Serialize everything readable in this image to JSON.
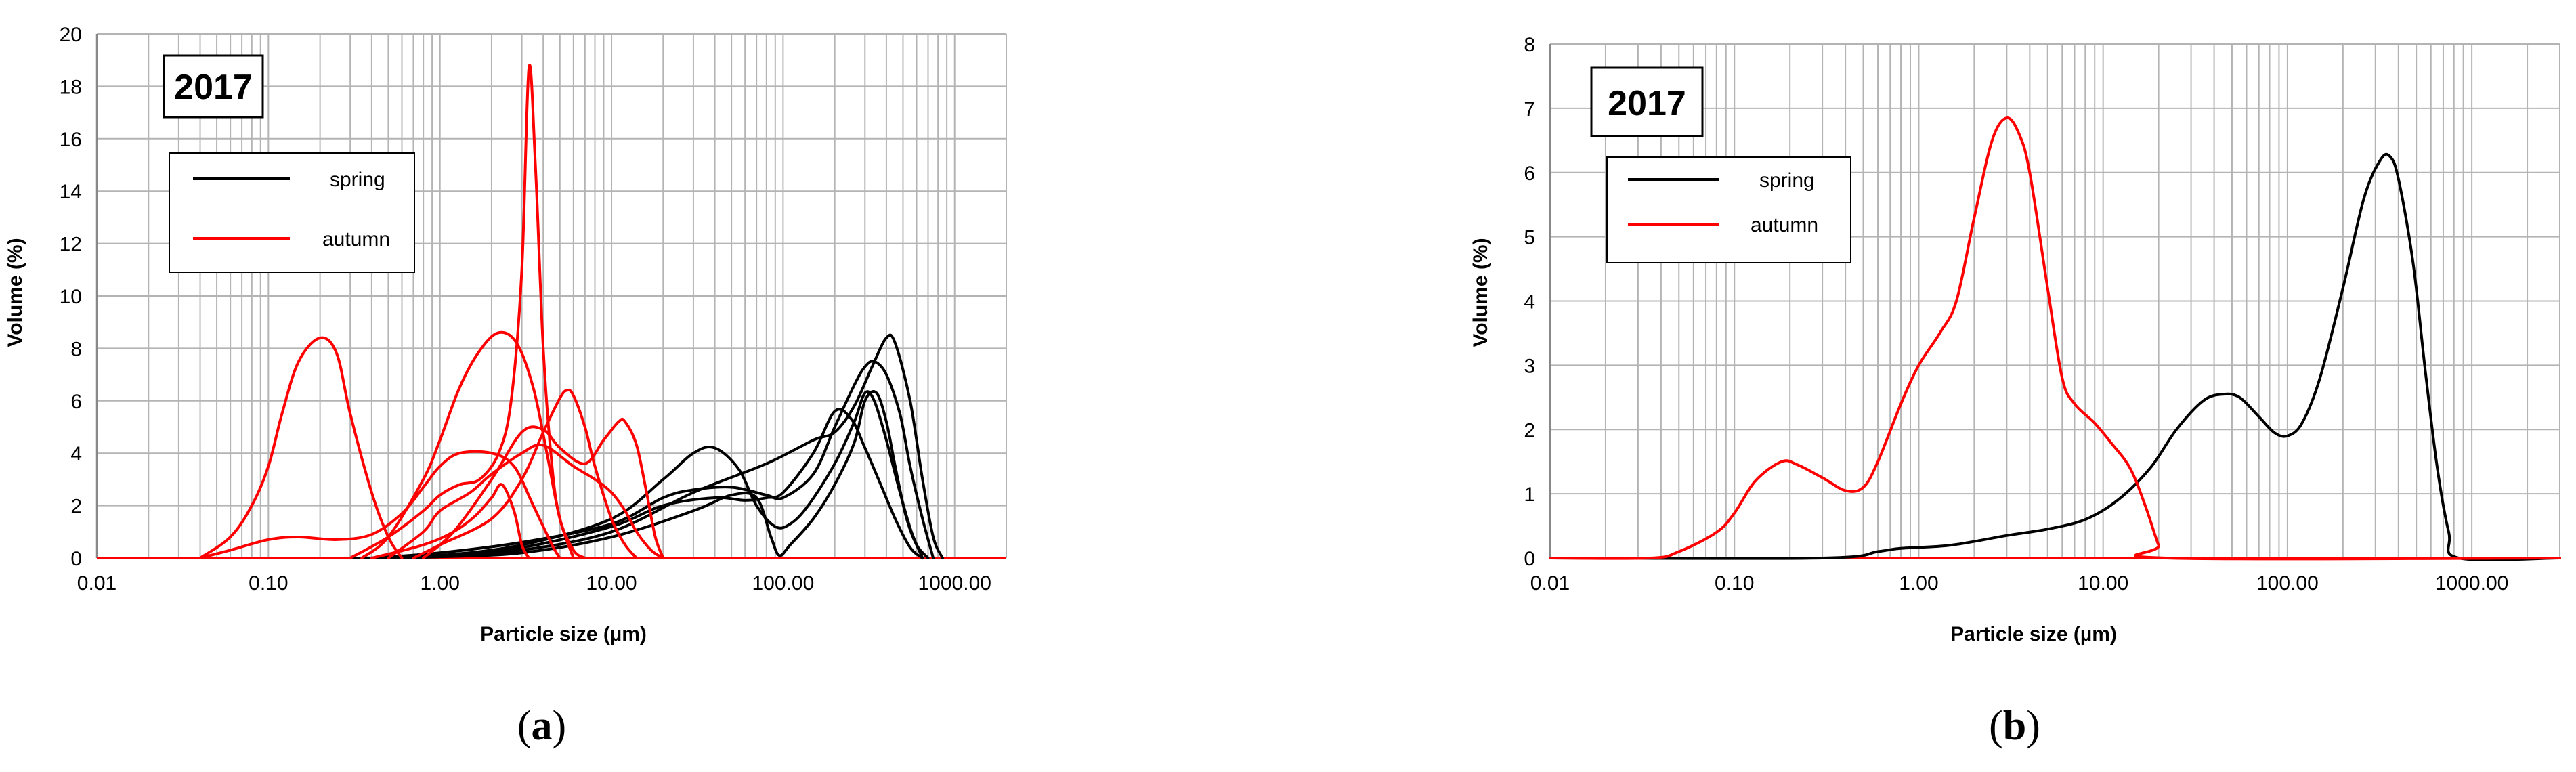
{
  "colors": {
    "spring": "#000000",
    "autumn": "#ff0000",
    "grid": "#b4b4b4"
  },
  "chart_data": [
    {
      "type": "line",
      "panel_label": "(a)",
      "panel_letter": "a",
      "year_label": "2017",
      "xlabel": "Particle size (µm)",
      "ylabel": "Volume (%)",
      "x_scale": "log",
      "xlim": [
        0.01,
        2000
      ],
      "ylim": [
        0,
        20
      ],
      "x_tick_labels": [
        "0.01",
        "0.10",
        "1.00",
        "10.00",
        "100.00",
        "1000.00"
      ],
      "y_ticks": [
        0,
        2,
        4,
        6,
        8,
        10,
        12,
        14,
        16,
        18,
        20
      ],
      "grid": true,
      "legend": {
        "position": "top-left",
        "entries": [
          "spring",
          "autumn"
        ]
      },
      "series": [
        {
          "group": "spring",
          "points": [
            [
              0.3,
              0
            ],
            [
              1,
              0.05
            ],
            [
              3,
              0.3
            ],
            [
              10,
              1.0
            ],
            [
              30,
              2.5
            ],
            [
              80,
              3.6
            ],
            [
              150,
              4.5
            ],
            [
              200,
              4.8
            ],
            [
              260,
              5.8
            ],
            [
              330,
              7.3
            ],
            [
              400,
              8.4
            ],
            [
              450,
              8.2
            ],
            [
              550,
              6.0
            ],
            [
              650,
              3.0
            ],
            [
              750,
              0.8
            ],
            [
              850,
              0
            ]
          ]
        },
        {
          "group": "spring",
          "points": [
            [
              0.4,
              0
            ],
            [
              1,
              0.2
            ],
            [
              3,
              0.6
            ],
            [
              10,
              1.3
            ],
            [
              20,
              2.3
            ],
            [
              30,
              2.6
            ],
            [
              50,
              2.7
            ],
            [
              80,
              2.4
            ],
            [
              100,
              2.3
            ],
            [
              150,
              3.2
            ],
            [
              200,
              5.0
            ],
            [
              260,
              6.6
            ],
            [
              300,
              7.3
            ],
            [
              340,
              7.5
            ],
            [
              400,
              7.0
            ],
            [
              480,
              5.5
            ],
            [
              550,
              3.5
            ],
            [
              650,
              1.5
            ],
            [
              750,
              0
            ]
          ]
        },
        {
          "group": "spring",
          "points": [
            [
              0.4,
              0
            ],
            [
              1,
              0.1
            ],
            [
              3,
              0.5
            ],
            [
              10,
              1.5
            ],
            [
              20,
              3.0
            ],
            [
              30,
              4.0
            ],
            [
              40,
              4.2
            ],
            [
              55,
              3.4
            ],
            [
              70,
              2.0
            ],
            [
              90,
              1.2
            ],
            [
              110,
              1.3
            ],
            [
              140,
              2.0
            ],
            [
              200,
              3.6
            ],
            [
              260,
              5.2
            ],
            [
              300,
              6.3
            ],
            [
              340,
              6.0
            ],
            [
              400,
              4.5
            ],
            [
              480,
              2.5
            ],
            [
              560,
              1.0
            ],
            [
              650,
              0
            ]
          ]
        },
        {
          "group": "spring",
          "points": [
            [
              0.4,
              0
            ],
            [
              1,
              0.1
            ],
            [
              3,
              0.4
            ],
            [
              10,
              1.2
            ],
            [
              20,
              2.0
            ],
            [
              40,
              2.3
            ],
            [
              60,
              2.2
            ],
            [
              80,
              2.3
            ],
            [
              100,
              2.5
            ],
            [
              150,
              4.0
            ],
            [
              200,
              5.6
            ],
            [
              250,
              5.3
            ],
            [
              300,
              4.2
            ],
            [
              360,
              3.0
            ],
            [
              450,
              1.5
            ],
            [
              550,
              0.4
            ],
            [
              650,
              0
            ]
          ]
        },
        {
          "group": "spring",
          "points": [
            [
              0.4,
              0
            ],
            [
              1,
              0.05
            ],
            [
              3,
              0.2
            ],
            [
              10,
              0.8
            ],
            [
              30,
              1.8
            ],
            [
              50,
              2.4
            ],
            [
              70,
              2.3
            ],
            [
              85,
              0.8
            ],
            [
              95,
              0.1
            ],
            [
              110,
              0.5
            ],
            [
              150,
              1.5
            ],
            [
              200,
              2.8
            ],
            [
              260,
              4.4
            ],
            [
              300,
              6.0
            ],
            [
              350,
              6.3
            ],
            [
              400,
              5.2
            ],
            [
              450,
              3.5
            ],
            [
              520,
              1.6
            ],
            [
              600,
              0.5
            ],
            [
              700,
              0
            ]
          ]
        },
        {
          "group": "autumn",
          "points": [
            [
              0.04,
              0
            ],
            [
              0.06,
              0.8
            ],
            [
              0.08,
              2.0
            ],
            [
              0.1,
              3.5
            ],
            [
              0.12,
              5.5
            ],
            [
              0.15,
              7.5
            ],
            [
              0.2,
              8.4
            ],
            [
              0.25,
              7.8
            ],
            [
              0.3,
              5.5
            ],
            [
              0.4,
              2.5
            ],
            [
              0.5,
              0.8
            ],
            [
              0.6,
              0
            ]
          ]
        },
        {
          "group": "autumn",
          "points": [
            [
              0.04,
              0
            ],
            [
              0.06,
              0.3
            ],
            [
              0.1,
              0.7
            ],
            [
              0.15,
              0.8
            ],
            [
              0.25,
              0.7
            ],
            [
              0.4,
              0.9
            ],
            [
              0.6,
              1.7
            ],
            [
              0.8,
              2.7
            ],
            [
              1,
              3.5
            ],
            [
              1.3,
              4.0
            ],
            [
              2,
              4.0
            ],
            [
              2.7,
              3.5
            ],
            [
              3.5,
              2.0
            ],
            [
              4.5,
              0.5
            ],
            [
              5,
              0
            ]
          ]
        },
        {
          "group": "autumn",
          "points": [
            [
              0.35,
              0
            ],
            [
              0.5,
              0.8
            ],
            [
              0.8,
              3.0
            ],
            [
              1,
              4.5
            ],
            [
              1.3,
              6.5
            ],
            [
              1.7,
              7.9
            ],
            [
              2.2,
              8.6
            ],
            [
              2.8,
              8.2
            ],
            [
              3.5,
              6.5
            ],
            [
              4.2,
              4.0
            ],
            [
              5,
              1.5
            ],
            [
              6,
              0
            ]
          ]
        },
        {
          "group": "autumn",
          "points": [
            [
              0.3,
              0
            ],
            [
              0.5,
              0.8
            ],
            [
              0.8,
              1.8
            ],
            [
              1,
              2.4
            ],
            [
              1.3,
              2.8
            ],
            [
              1.7,
              3.0
            ],
            [
              2.2,
              4.0
            ],
            [
              2.6,
              6.0
            ],
            [
              3,
              11.0
            ],
            [
              3.3,
              18.7
            ],
            [
              3.6,
              15.0
            ],
            [
              4,
              8.0
            ],
            [
              4.5,
              3.5
            ],
            [
              5,
              1.5
            ],
            [
              6,
              0.3
            ],
            [
              7,
              0
            ]
          ]
        },
        {
          "group": "autumn",
          "points": [
            [
              0.4,
              0
            ],
            [
              0.8,
              0.5
            ],
            [
              1.2,
              1.0
            ],
            [
              1.6,
              1.6
            ],
            [
              2,
              2.3
            ],
            [
              2.3,
              2.8
            ],
            [
              2.7,
              1.8
            ],
            [
              3,
              0.5
            ],
            [
              3.3,
              0
            ]
          ]
        },
        {
          "group": "autumn",
          "points": [
            [
              0.5,
              0
            ],
            [
              0.8,
              1.0
            ],
            [
              1,
              1.8
            ],
            [
              1.5,
              2.5
            ],
            [
              2,
              3.2
            ],
            [
              3,
              4.0
            ],
            [
              4,
              4.3
            ],
            [
              6,
              3.5
            ],
            [
              8,
              3.0
            ],
            [
              10,
              2.5
            ],
            [
              12,
              1.8
            ],
            [
              14,
              1.0
            ],
            [
              17,
              0.3
            ],
            [
              20,
              0
            ]
          ]
        },
        {
          "group": "autumn",
          "points": [
            [
              0.7,
              0
            ],
            [
              1,
              0.5
            ],
            [
              2,
              1.5
            ],
            [
              3,
              3.0
            ],
            [
              4,
              4.8
            ],
            [
              5,
              6.1
            ],
            [
              5.5,
              6.4
            ],
            [
              6,
              6.2
            ],
            [
              7,
              5.0
            ],
            [
              8,
              3.5
            ],
            [
              10,
              1.5
            ],
            [
              12,
              0.5
            ],
            [
              14,
              0
            ]
          ]
        },
        {
          "group": "autumn",
          "points": [
            [
              0.8,
              0
            ],
            [
              1.2,
              1.0
            ],
            [
              2,
              3.0
            ],
            [
              3,
              4.8
            ],
            [
              4,
              4.9
            ],
            [
              5,
              4.2
            ],
            [
              7,
              3.6
            ],
            [
              9,
              4.5
            ],
            [
              11,
              5.2
            ],
            [
              12,
              5.2
            ],
            [
              14,
              4.3
            ],
            [
              16,
              2.5
            ],
            [
              18,
              0.8
            ],
            [
              20,
              0
            ]
          ]
        }
      ]
    },
    {
      "type": "line",
      "panel_label": "(b)",
      "panel_letter": "b",
      "year_label": "2017",
      "xlabel": "Particle size (µm)",
      "ylabel": "Volume (%)",
      "x_scale": "log",
      "xlim": [
        0.01,
        3000
      ],
      "ylim": [
        0,
        8
      ],
      "x_tick_labels": [
        "0.01",
        "0.10",
        "1.00",
        "10.00",
        "100.00",
        "1000.00"
      ],
      "y_ticks": [
        0,
        1,
        2,
        3,
        4,
        5,
        6,
        7,
        8
      ],
      "grid": true,
      "legend": {
        "position": "top-left",
        "entries": [
          "spring",
          "autumn"
        ]
      },
      "series": [
        {
          "group": "spring",
          "points": [
            [
              0.01,
              0
            ],
            [
              0.3,
              0
            ],
            [
              0.6,
              0.1
            ],
            [
              0.8,
              0.15
            ],
            [
              1.5,
              0.2
            ],
            [
              3,
              0.35
            ],
            [
              5,
              0.45
            ],
            [
              8,
              0.6
            ],
            [
              12,
              0.9
            ],
            [
              18,
              1.4
            ],
            [
              25,
              2.0
            ],
            [
              35,
              2.45
            ],
            [
              45,
              2.55
            ],
            [
              55,
              2.5
            ],
            [
              70,
              2.2
            ],
            [
              85,
              1.95
            ],
            [
              100,
              1.9
            ],
            [
              120,
              2.1
            ],
            [
              150,
              2.8
            ],
            [
              200,
              4.2
            ],
            [
              260,
              5.6
            ],
            [
              320,
              6.2
            ],
            [
              360,
              6.25
            ],
            [
              400,
              5.9
            ],
            [
              480,
              4.6
            ],
            [
              560,
              2.9
            ],
            [
              650,
              1.4
            ],
            [
              750,
              0.4
            ],
            [
              850,
              0
            ],
            [
              3000,
              0
            ]
          ]
        },
        {
          "group": "autumn",
          "points": [
            [
              0.01,
              0
            ],
            [
              0.035,
              0
            ],
            [
              0.05,
              0.1
            ],
            [
              0.08,
              0.4
            ],
            [
              0.1,
              0.7
            ],
            [
              0.13,
              1.2
            ],
            [
              0.18,
              1.5
            ],
            [
              0.22,
              1.45
            ],
            [
              0.3,
              1.25
            ],
            [
              0.4,
              1.05
            ],
            [
              0.5,
              1.1
            ],
            [
              0.6,
              1.5
            ],
            [
              0.8,
              2.4
            ],
            [
              1,
              3.0
            ],
            [
              1.3,
              3.5
            ],
            [
              1.6,
              4.0
            ],
            [
              2,
              5.3
            ],
            [
              2.5,
              6.5
            ],
            [
              3,
              6.85
            ],
            [
              3.5,
              6.6
            ],
            [
              4,
              6.0
            ],
            [
              5,
              4.2
            ],
            [
              6,
              2.8
            ],
            [
              7,
              2.4
            ],
            [
              9,
              2.1
            ],
            [
              11,
              1.8
            ],
            [
              14,
              1.4
            ],
            [
              17,
              0.8
            ],
            [
              20,
              0.2
            ],
            [
              22,
              0
            ],
            [
              3000,
              0
            ]
          ]
        }
      ]
    }
  ]
}
